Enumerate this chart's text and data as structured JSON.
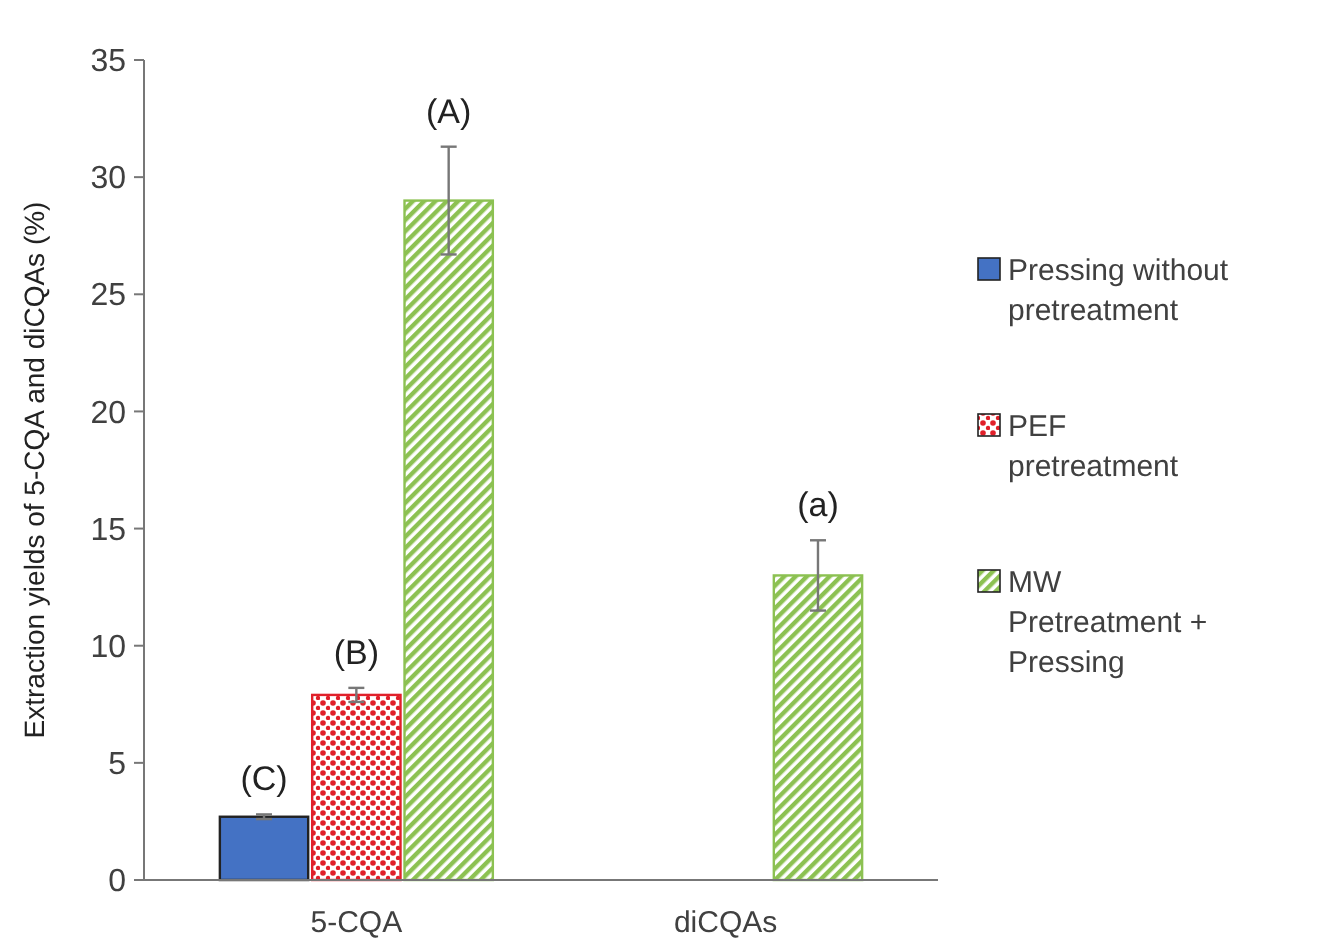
{
  "chart_data": {
    "type": "bar",
    "ylabel": "Extraction yields of 5-CQA and diCQAs (%)",
    "categories": [
      "5-CQA",
      "diCQAs"
    ],
    "series": [
      {
        "name": "Pressing without pretreatment",
        "color": "#4472c4",
        "values": [
          2.7,
          null
        ],
        "errors": [
          0.1,
          null
        ]
      },
      {
        "name": "PEF pretreatment",
        "color": "#e0202a",
        "values": [
          7.9,
          null
        ],
        "errors": [
          0.3,
          null
        ]
      },
      {
        "name": "MW Pretreatment + Pressing",
        "color": "#8cc152",
        "values": [
          29.0,
          13.0
        ],
        "errors": [
          2.3,
          1.5
        ]
      }
    ],
    "ylim": [
      0,
      35
    ],
    "yticks": [
      0,
      5,
      10,
      15,
      20,
      25,
      30,
      35
    ],
    "legend": "right",
    "grid": false,
    "annotations": [
      "(C)",
      "(B)",
      "(A)",
      "(a)"
    ]
  }
}
